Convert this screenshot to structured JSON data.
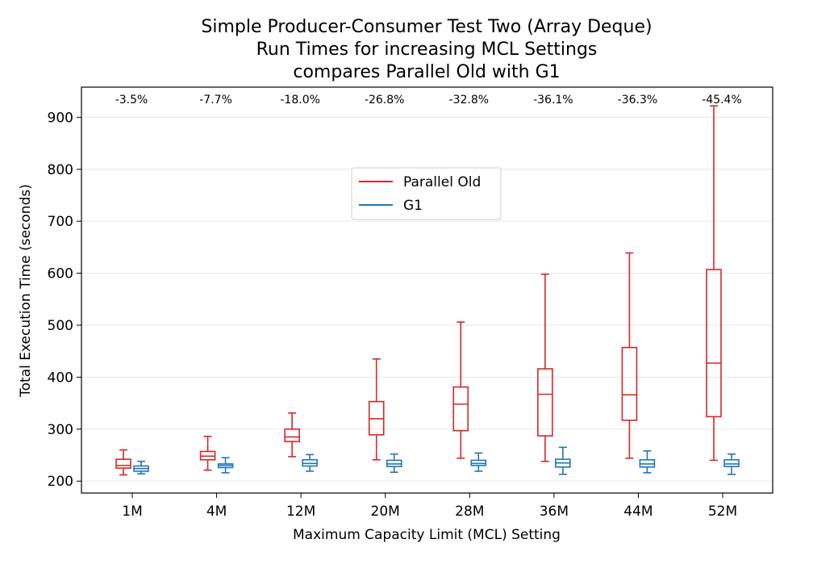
{
  "chart_data": {
    "type": "box",
    "title": [
      "Simple Producer-Consumer Test Two (Array Deque)",
      "Run Times for increasing MCL Settings",
      "compares Parallel Old with G1"
    ],
    "xlabel": "Maximum Capacity Limit (MCL) Setting",
    "ylabel": "Total Execution Time (seconds)",
    "ylim": [
      177,
      958
    ],
    "yticks": [
      200,
      300,
      400,
      500,
      600,
      700,
      800,
      900
    ],
    "grid": "horizontal",
    "legend_position": "upper-center",
    "categories": [
      "1M",
      "4M",
      "12M",
      "20M",
      "28M",
      "36M",
      "44M",
      "52M"
    ],
    "annotations": [
      "-3.5%",
      "-7.7%",
      "-18.0%",
      "-26.8%",
      "-32.8%",
      "-36.1%",
      "-36.3%",
      "-45.4%"
    ],
    "series": [
      {
        "name": "Parallel Old",
        "color": "#d62728",
        "boxes": [
          {
            "whislo": 212,
            "q1": 225,
            "med": 230,
            "q3": 242,
            "whishi": 260
          },
          {
            "whislo": 221,
            "q1": 241,
            "med": 248,
            "q3": 257,
            "whishi": 286
          },
          {
            "whislo": 247,
            "q1": 276,
            "med": 285,
            "q3": 300,
            "whishi": 331
          },
          {
            "whislo": 241,
            "q1": 289,
            "med": 320,
            "q3": 353,
            "whishi": 435
          },
          {
            "whislo": 244,
            "q1": 297,
            "med": 348,
            "q3": 381,
            "whishi": 506
          },
          {
            "whislo": 238,
            "q1": 287,
            "med": 367,
            "q3": 416,
            "whishi": 598
          },
          {
            "whislo": 244,
            "q1": 317,
            "med": 366,
            "q3": 457,
            "whishi": 639
          },
          {
            "whislo": 240,
            "q1": 324,
            "med": 427,
            "q3": 607,
            "whishi": 922
          }
        ]
      },
      {
        "name": "G1",
        "color": "#1f77b4",
        "boxes": [
          {
            "whislo": 214,
            "q1": 219,
            "med": 224,
            "q3": 229,
            "whishi": 238
          },
          {
            "whislo": 216,
            "q1": 226,
            "med": 230,
            "q3": 233,
            "whishi": 245
          },
          {
            "whislo": 219,
            "q1": 229,
            "med": 234,
            "q3": 241,
            "whishi": 251
          },
          {
            "whislo": 217,
            "q1": 228,
            "med": 233,
            "q3": 240,
            "whishi": 252
          },
          {
            "whislo": 219,
            "q1": 230,
            "med": 234,
            "q3": 240,
            "whishi": 254
          },
          {
            "whislo": 213,
            "q1": 227,
            "med": 235,
            "q3": 242,
            "whishi": 265
          },
          {
            "whislo": 216,
            "q1": 227,
            "med": 233,
            "q3": 241,
            "whishi": 258
          },
          {
            "whislo": 213,
            "q1": 228,
            "med": 233,
            "q3": 241,
            "whishi": 252
          }
        ]
      }
    ]
  }
}
